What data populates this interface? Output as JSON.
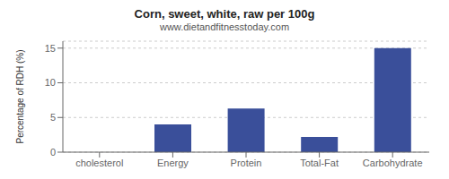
{
  "chart_data": {
    "type": "bar",
    "title": "Corn, sweet, white, raw per 100g",
    "subtitle": "www.dietandfitnesstoday.com",
    "ylabel": "Percentage of RDH (%)",
    "categories": [
      "cholesterol",
      "Energy",
      "Protein",
      "Total-Fat",
      "Carbohydrate"
    ],
    "values": [
      0,
      4.0,
      6.3,
      2.2,
      15.0
    ],
    "color": "#3a4f9a",
    "ylim": [
      0,
      16
    ],
    "yticks": [
      0,
      5,
      10,
      15
    ],
    "grid": true
  }
}
